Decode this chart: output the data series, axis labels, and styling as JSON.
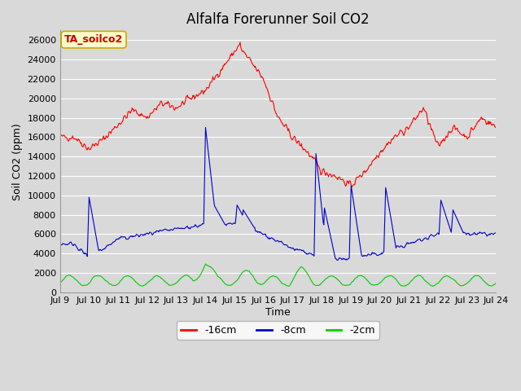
{
  "title": "Alfalfa Forerunner Soil CO2",
  "xlabel": "Time",
  "ylabel": "Soil CO2 (ppm)",
  "legend_label": "TA_soilco2",
  "series_labels": [
    "-16cm",
    "-8cm",
    "-2cm"
  ],
  "series_colors": [
    "#ff0000",
    "#0000cc",
    "#00cc00"
  ],
  "ylim": [
    0,
    27000
  ],
  "yticks": [
    0,
    2000,
    4000,
    6000,
    8000,
    10000,
    12000,
    14000,
    16000,
    18000,
    20000,
    22000,
    24000,
    26000
  ],
  "xtick_labels": [
    "Jul 9",
    "Jul 10",
    "Jul 11",
    "Jul 12",
    "Jul 13",
    "Jul 14",
    "Jul 15",
    "Jul 16",
    "Jul 17",
    "Jul 18",
    "Jul 19",
    "Jul 20",
    "Jul 21",
    "Jul 22",
    "Jul 23",
    "Jul 24"
  ],
  "background_color": "#d9d9d9",
  "plot_bg_color": "#d9d9d9",
  "grid_color": "#ffffff",
  "title_fontsize": 12,
  "axis_label_fontsize": 9,
  "tick_fontsize": 8,
  "legend_box_color": "#ffffcc",
  "legend_box_edge": "#ccaa00",
  "legend_text_color": "#cc0000"
}
